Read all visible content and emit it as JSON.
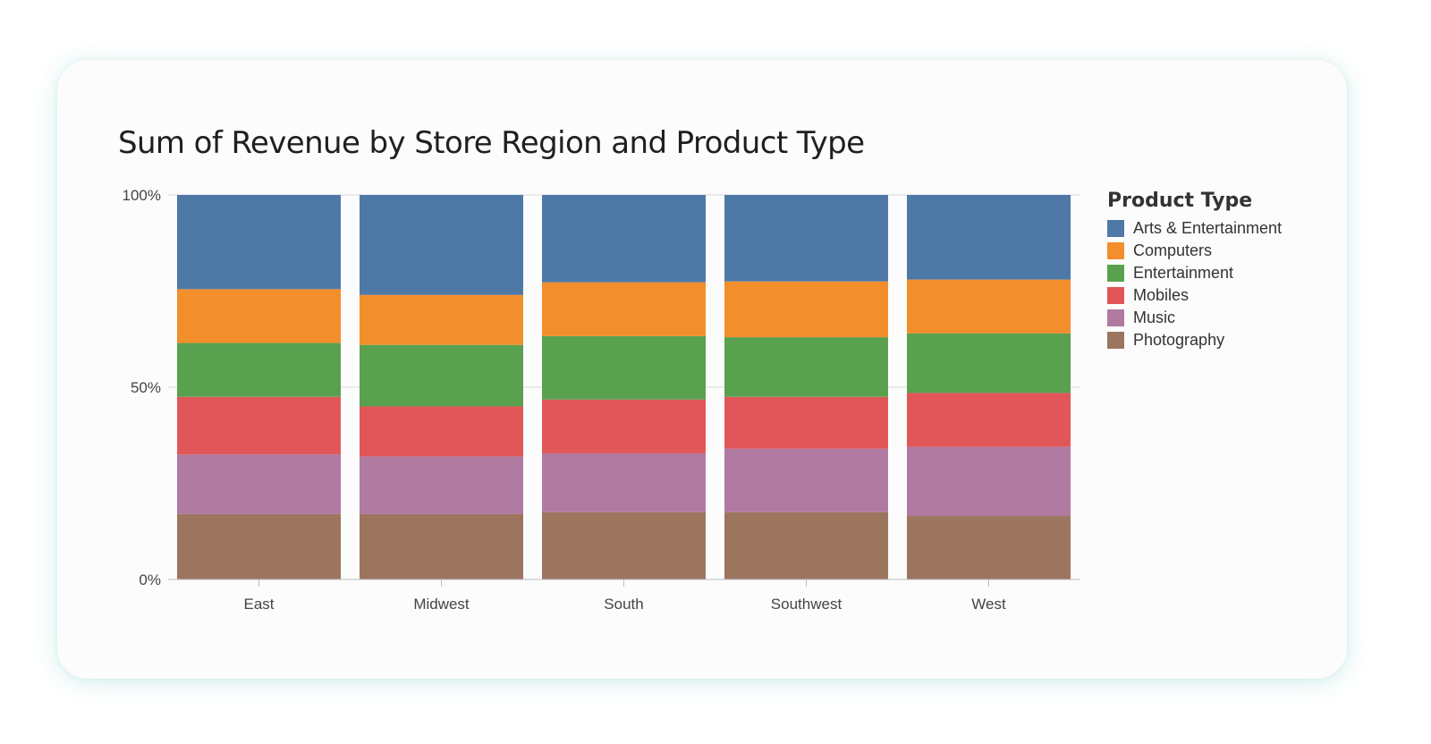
{
  "chart_data": {
    "type": "bar",
    "stacked": true,
    "normalized": true,
    "title": "Sum of Revenue by Store Region and Product Type",
    "xlabel": "",
    "ylabel": "",
    "ylim": [
      0,
      100
    ],
    "y_ticks": [
      {
        "value": 0,
        "label": "0%"
      },
      {
        "value": 50,
        "label": "50%"
      },
      {
        "value": 100,
        "label": "100%"
      }
    ],
    "grid": true,
    "legend_position": "right",
    "legend_title": "Product Type",
    "categories": [
      "East",
      "Midwest",
      "South",
      "Southwest",
      "West"
    ],
    "series": [
      {
        "name": "Photography",
        "color": "#9c755f",
        "values": [
          17,
          17,
          17.5,
          17.5,
          16.5
        ]
      },
      {
        "name": "Music",
        "color": "#b07aa1",
        "values": [
          15.5,
          15,
          15.3,
          16.5,
          18
        ]
      },
      {
        "name": "Mobiles",
        "color": "#e15759",
        "values": [
          15,
          13,
          14,
          13.5,
          14
        ]
      },
      {
        "name": "Entertainment",
        "color": "#59a14f",
        "values": [
          14,
          16,
          16.5,
          15.5,
          15.5
        ]
      },
      {
        "name": "Computers",
        "color": "#f28e2b",
        "values": [
          14,
          13,
          14,
          14.5,
          14
        ]
      },
      {
        "name": "Arts & Entertainment",
        "color": "#4e79a7",
        "values": [
          24.5,
          26,
          22.7,
          22.5,
          22
        ]
      }
    ],
    "legend_order": [
      "Arts & Entertainment",
      "Computers",
      "Entertainment",
      "Mobiles",
      "Music",
      "Photography"
    ]
  }
}
